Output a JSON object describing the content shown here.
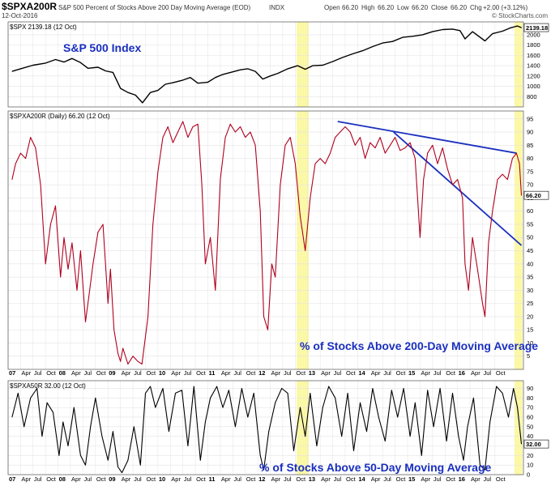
{
  "header": {
    "symbol": "$SPXA200R",
    "description": "S&P 500 Percent of Stocks Above 200 Day Moving Average (EOD)",
    "exchange": "INDX",
    "date": "12-Oct-2016",
    "open_label": "Open",
    "open_value": "66.20",
    "high_label": "High",
    "high_value": "66.20",
    "low_label": "Low",
    "low_value": "66.20",
    "close_label": "Close",
    "close_value": "66.20",
    "chg_label": "Chg",
    "chg_value": "+2.00 (+3.12%)",
    "watermark": "© StockCharts.com"
  },
  "chart_data": [
    {
      "type": "line",
      "panel_label": "$SPX 2139.18 (12 Oct)",
      "annotation": "S&P 500 Index",
      "last_value_label": "2139.18",
      "ylim": [
        600,
        2250
      ],
      "yticks": [
        800,
        1000,
        1200,
        1400,
        1600,
        1800,
        2000
      ],
      "y_axis_position": "right",
      "line_color": "#000000",
      "x": [
        2006.58,
        2006.75,
        2007.0,
        2007.25,
        2007.45,
        2007.62,
        2007.78,
        2007.95,
        2008.1,
        2008.3,
        2008.45,
        2008.6,
        2008.75,
        2008.9,
        2009.05,
        2009.19,
        2009.35,
        2009.5,
        2009.65,
        2009.8,
        2010.0,
        2010.15,
        2010.3,
        2010.5,
        2010.65,
        2010.8,
        2011.0,
        2011.15,
        2011.3,
        2011.45,
        2011.6,
        2011.75,
        2011.9,
        2012.1,
        2012.3,
        2012.45,
        2012.6,
        2012.8,
        2013.0,
        2013.2,
        2013.4,
        2013.6,
        2013.8,
        2014.0,
        2014.2,
        2014.4,
        2014.6,
        2014.8,
        2015.0,
        2015.2,
        2015.4,
        2015.55,
        2015.65,
        2015.8,
        2016.05,
        2016.2,
        2016.4,
        2016.55,
        2016.7,
        2016.78
      ],
      "y": [
        1290,
        1340,
        1410,
        1450,
        1520,
        1470,
        1540,
        1460,
        1350,
        1370,
        1300,
        1270,
        960,
        880,
        830,
        680,
        880,
        920,
        1040,
        1070,
        1120,
        1170,
        1060,
        1080,
        1170,
        1230,
        1280,
        1320,
        1340,
        1290,
        1140,
        1200,
        1250,
        1340,
        1400,
        1330,
        1400,
        1410,
        1480,
        1560,
        1630,
        1690,
        1770,
        1840,
        1870,
        1950,
        1970,
        2000,
        2060,
        2100,
        2110,
        2080,
        1920,
        2060,
        1880,
        2020,
        2070,
        2130,
        2170,
        2139
      ]
    },
    {
      "type": "line",
      "panel_label": "$SPXA200R (Daily) 66.20 (12 Oct)",
      "annotation": "% of Stocks Above 200-Day Moving Average",
      "last_value_label": "66.20",
      "ylim": [
        0,
        98
      ],
      "yticks": [
        5,
        10,
        15,
        20,
        25,
        30,
        35,
        40,
        45,
        50,
        55,
        60,
        65,
        70,
        75,
        80,
        85,
        90,
        95
      ],
      "y_axis_position": "right",
      "line_color": "#b0001e",
      "x": [
        2006.58,
        2006.65,
        2006.75,
        2006.85,
        2006.95,
        2007.05,
        2007.15,
        2007.25,
        2007.35,
        2007.45,
        2007.55,
        2007.62,
        2007.7,
        2007.78,
        2007.88,
        2007.95,
        2008.05,
        2008.12,
        2008.2,
        2008.3,
        2008.4,
        2008.5,
        2008.55,
        2008.62,
        2008.7,
        2008.75,
        2008.8,
        2008.9,
        2009.0,
        2009.1,
        2009.18,
        2009.3,
        2009.4,
        2009.5,
        2009.6,
        2009.7,
        2009.8,
        2009.9,
        2010.0,
        2010.1,
        2010.2,
        2010.3,
        2010.38,
        2010.45,
        2010.55,
        2010.65,
        2010.75,
        2010.85,
        2010.95,
        2011.05,
        2011.15,
        2011.25,
        2011.35,
        2011.45,
        2011.55,
        2011.62,
        2011.7,
        2011.78,
        2011.85,
        2011.95,
        2012.05,
        2012.15,
        2012.25,
        2012.35,
        2012.45,
        2012.55,
        2012.65,
        2012.75,
        2012.85,
        2012.95,
        2013.05,
        2013.15,
        2013.25,
        2013.35,
        2013.45,
        2013.55,
        2013.65,
        2013.75,
        2013.85,
        2013.95,
        2014.05,
        2014.15,
        2014.25,
        2014.35,
        2014.45,
        2014.55,
        2014.65,
        2014.75,
        2014.82,
        2014.9,
        2015.0,
        2015.1,
        2015.2,
        2015.3,
        2015.4,
        2015.5,
        2015.6,
        2015.65,
        2015.72,
        2015.8,
        2015.9,
        2016.0,
        2016.05,
        2016.12,
        2016.2,
        2016.3,
        2016.4,
        2016.5,
        2016.6,
        2016.68,
        2016.74,
        2016.78
      ],
      "y": [
        72,
        78,
        82,
        80,
        88,
        84,
        70,
        40,
        55,
        62,
        35,
        50,
        38,
        48,
        30,
        45,
        18,
        28,
        40,
        52,
        55,
        25,
        38,
        15,
        6,
        3,
        8,
        2,
        5,
        3,
        2,
        20,
        55,
        75,
        88,
        92,
        86,
        90,
        94,
        88,
        92,
        93,
        70,
        40,
        50,
        30,
        72,
        88,
        93,
        90,
        92,
        88,
        90,
        85,
        60,
        20,
        15,
        40,
        35,
        70,
        85,
        88,
        78,
        58,
        45,
        65,
        78,
        80,
        78,
        82,
        88,
        90,
        92,
        90,
        85,
        88,
        80,
        86,
        84,
        88,
        82,
        85,
        88,
        83,
        84,
        86,
        80,
        50,
        72,
        82,
        85,
        78,
        84,
        76,
        70,
        72,
        65,
        40,
        30,
        50,
        38,
        25,
        20,
        48,
        60,
        72,
        74,
        72,
        80,
        82,
        78,
        66
      ]
    },
    {
      "type": "line",
      "panel_label": "$SPXA50R 32.00 (12 Oct)",
      "annotation": "% of Stocks Above 50-Day Moving Average",
      "last_value_label": "32.00",
      "ylim": [
        0,
        98
      ],
      "yticks": [
        0,
        10,
        20,
        30,
        40,
        50,
        60,
        70,
        80,
        90
      ],
      "y_axis_position": "right",
      "line_color": "#000000",
      "x": [
        2006.58,
        2006.7,
        2006.82,
        2006.95,
        2007.08,
        2007.18,
        2007.28,
        2007.4,
        2007.52,
        2007.6,
        2007.7,
        2007.82,
        2007.95,
        2008.05,
        2008.15,
        2008.25,
        2008.38,
        2008.5,
        2008.6,
        2008.7,
        2008.78,
        2008.9,
        2009.02,
        2009.15,
        2009.25,
        2009.35,
        2009.45,
        2009.6,
        2009.72,
        2009.85,
        2009.98,
        2010.1,
        2010.22,
        2010.35,
        2010.45,
        2010.55,
        2010.68,
        2010.8,
        2010.92,
        2011.05,
        2011.18,
        2011.3,
        2011.42,
        2011.55,
        2011.62,
        2011.72,
        2011.85,
        2011.98,
        2012.1,
        2012.22,
        2012.35,
        2012.45,
        2012.55,
        2012.68,
        2012.8,
        2012.92,
        2013.05,
        2013.18,
        2013.3,
        2013.42,
        2013.55,
        2013.68,
        2013.8,
        2013.92,
        2014.05,
        2014.18,
        2014.3,
        2014.42,
        2014.55,
        2014.65,
        2014.78,
        2014.9,
        2015.02,
        2015.15,
        2015.28,
        2015.4,
        2015.52,
        2015.62,
        2015.7,
        2015.82,
        2015.95,
        2016.05,
        2016.15,
        2016.28,
        2016.4,
        2016.52,
        2016.62,
        2016.7,
        2016.78
      ],
      "y": [
        60,
        85,
        50,
        80,
        90,
        40,
        75,
        65,
        20,
        55,
        30,
        70,
        20,
        10,
        50,
        80,
        40,
        15,
        45,
        8,
        2,
        15,
        50,
        10,
        85,
        92,
        70,
        90,
        45,
        85,
        88,
        30,
        92,
        15,
        55,
        80,
        92,
        70,
        88,
        50,
        90,
        60,
        85,
        20,
        5,
        45,
        75,
        90,
        85,
        25,
        70,
        40,
        85,
        30,
        70,
        92,
        80,
        40,
        85,
        25,
        75,
        45,
        90,
        60,
        35,
        88,
        60,
        90,
        40,
        75,
        20,
        88,
        50,
        90,
        35,
        85,
        40,
        15,
        50,
        80,
        10,
        5,
        55,
        92,
        85,
        60,
        90,
        70,
        32
      ]
    }
  ],
  "x_axis": {
    "range": [
      2006.5,
      2016.82
    ],
    "labels": [
      {
        "t": 2006.5,
        "l": "07"
      },
      {
        "t": 2006.75,
        "l": "Apr"
      },
      {
        "t": 2007.0,
        "l": "Jul"
      },
      {
        "t": 2007.25,
        "l": "Oct"
      },
      {
        "t": 2007.5,
        "l": "08"
      },
      {
        "t": 2007.75,
        "l": "Apr"
      },
      {
        "t": 2008.0,
        "l": "Jul"
      },
      {
        "t": 2008.25,
        "l": "Oct"
      },
      {
        "t": 2008.5,
        "l": "09"
      },
      {
        "t": 2008.75,
        "l": "Apr"
      },
      {
        "t": 2009.0,
        "l": "Jul"
      },
      {
        "t": 2009.25,
        "l": "Oct"
      },
      {
        "t": 2009.5,
        "l": "10"
      },
      {
        "t": 2009.75,
        "l": "Apr"
      },
      {
        "t": 2010.0,
        "l": "Jul"
      },
      {
        "t": 2010.25,
        "l": "Oct"
      },
      {
        "t": 2010.5,
        "l": "11"
      },
      {
        "t": 2010.75,
        "l": "Apr"
      },
      {
        "t": 2011.0,
        "l": "Jul"
      },
      {
        "t": 2011.25,
        "l": "Oct"
      },
      {
        "t": 2011.5,
        "l": "12"
      },
      {
        "t": 2011.75,
        "l": "Apr"
      },
      {
        "t": 2012.0,
        "l": "Jul"
      },
      {
        "t": 2012.25,
        "l": "Oct"
      },
      {
        "t": 2012.5,
        "l": "13"
      },
      {
        "t": 2012.75,
        "l": "Apr"
      },
      {
        "t": 2013.0,
        "l": "Jul"
      },
      {
        "t": 2013.25,
        "l": "Oct"
      },
      {
        "t": 2013.5,
        "l": "14"
      },
      {
        "t": 2013.75,
        "l": "Apr"
      },
      {
        "t": 2014.0,
        "l": "Jul"
      },
      {
        "t": 2014.25,
        "l": "Oct"
      },
      {
        "t": 2014.5,
        "l": "15"
      },
      {
        "t": 2014.75,
        "l": "Apr"
      },
      {
        "t": 2015.0,
        "l": "Jul"
      },
      {
        "t": 2015.25,
        "l": "Oct"
      },
      {
        "t": 2015.5,
        "l": "16"
      },
      {
        "t": 2015.75,
        "l": "Apr"
      },
      {
        "t": 2016.0,
        "l": "Jul"
      },
      {
        "t": 2016.25,
        "l": "Oct"
      }
    ]
  },
  "highlights": [
    {
      "start": 2012.28,
      "end": 2012.52
    },
    {
      "start": 2016.64,
      "end": 2016.8
    }
  ],
  "trendlines": [
    {
      "t1": 2013.1,
      "v1": 94,
      "t2": 2016.68,
      "v2": 82
    },
    {
      "t1": 2014.22,
      "v1": 90,
      "t2": 2016.78,
      "v2": 47
    }
  ],
  "colors": {
    "highlight": "#fbf8a6",
    "trendline": "#1a2fbf",
    "annotation": "#1a2fbf",
    "grid": "#e3e3e3"
  }
}
